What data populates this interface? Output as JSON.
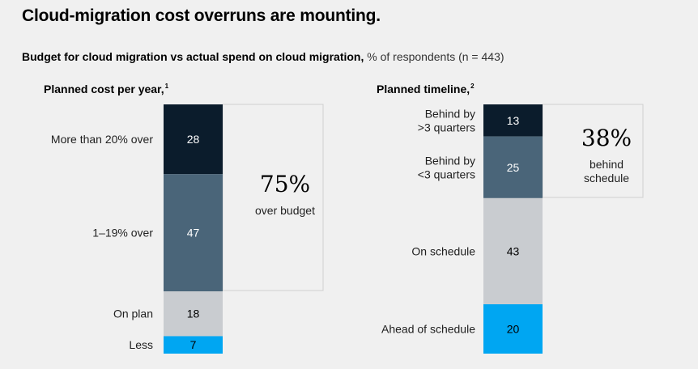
{
  "title": "Cloud-migration cost overruns are mounting.",
  "subtitle_bold": "Budget for cloud migration vs actual spend on cloud migration,",
  "subtitle_light": "% of respondents (n = 443)",
  "colors": {
    "dark_navy": "#0b1c2c",
    "slate": "#4a6579",
    "light_gray": "#c9ccd0",
    "bright_blue": "#00a6f2",
    "background": "#f0f0f0",
    "callout_border": "#cfcfcf"
  },
  "chart_data": [
    {
      "type": "bar",
      "stacked": true,
      "title": "Planned cost per year,",
      "footnote": "1",
      "categories": [
        [
          "More than 20% over"
        ],
        [
          "1–19% over"
        ],
        [
          "On plan"
        ],
        [
          "Less"
        ]
      ],
      "values": [
        28,
        47,
        18,
        7
      ],
      "segment_colors": [
        "#0b1c2c",
        "#4a6579",
        "#c9ccd0",
        "#00a6f2"
      ],
      "label_colors": [
        "#ffffff",
        "#ffffff",
        "#000000",
        "#000000"
      ],
      "callout": {
        "value": "75%",
        "text": [
          "over budget"
        ],
        "covers_segments": 2
      }
    },
    {
      "type": "bar",
      "stacked": true,
      "title": "Planned timeline,",
      "footnote": "2",
      "categories": [
        [
          "Behind by",
          ">3 quarters"
        ],
        [
          "Behind by",
          "<3 quarters"
        ],
        [
          "On schedule"
        ],
        [
          "Ahead of schedule"
        ]
      ],
      "values": [
        13,
        25,
        43,
        20
      ],
      "segment_colors": [
        "#0b1c2c",
        "#4a6579",
        "#c9ccd0",
        "#00a6f2"
      ],
      "label_colors": [
        "#ffffff",
        "#ffffff",
        "#000000",
        "#000000"
      ],
      "callout": {
        "value": "38%",
        "text": [
          "behind",
          "schedule"
        ],
        "covers_segments": 2
      }
    }
  ]
}
